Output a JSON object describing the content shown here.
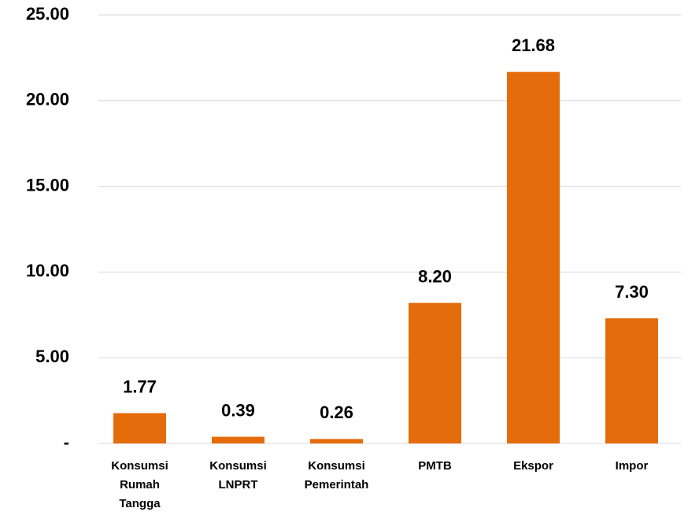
{
  "chart_data": {
    "type": "bar",
    "categories": [
      "Konsumsi Rumah Tangga",
      "Konsumsi LNPRT",
      "Konsumsi Pemerintah",
      "PMTB",
      "Ekspor",
      "Impor"
    ],
    "values": [
      1.77,
      0.39,
      0.26,
      8.2,
      21.68,
      7.3
    ],
    "value_labels": [
      "1.77",
      "0.39",
      "0.26",
      "8.20",
      "21.68",
      "7.30"
    ],
    "color": "#e46c0a",
    "ylim": [
      0,
      25
    ],
    "yticks": [
      {
        "value": 0,
        "label": "-"
      },
      {
        "value": 5,
        "label": "5.00"
      },
      {
        "value": 10,
        "label": "10.00"
      },
      {
        "value": 15,
        "label": "15.00"
      },
      {
        "value": 20,
        "label": "20.00"
      },
      {
        "value": 25,
        "label": "25.00"
      }
    ],
    "grid": true
  }
}
